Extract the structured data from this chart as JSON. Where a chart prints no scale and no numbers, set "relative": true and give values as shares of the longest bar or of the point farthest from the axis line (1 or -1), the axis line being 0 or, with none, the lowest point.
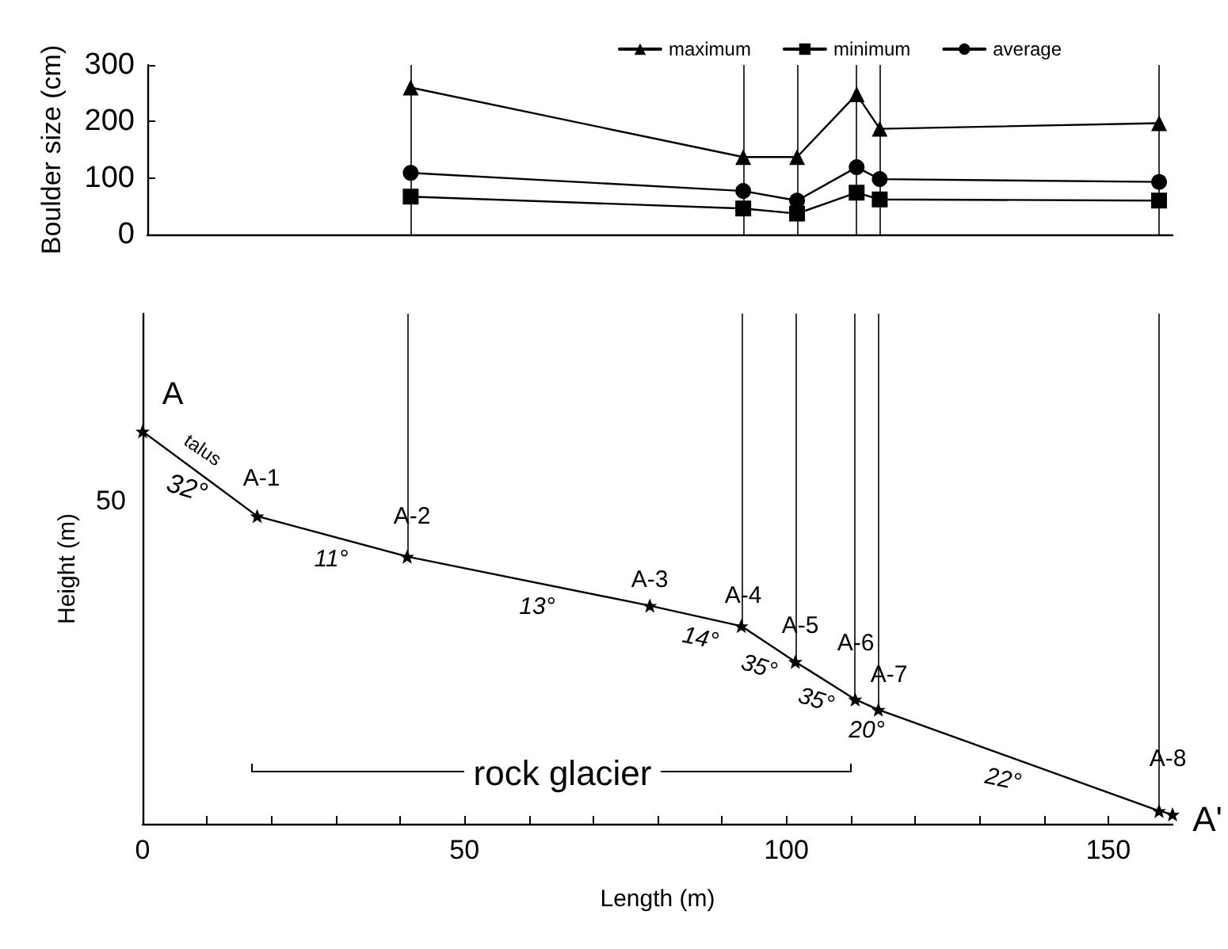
{
  "chart_data": [
    {
      "type": "line",
      "ylabel": "Boulder size (cm)",
      "x": [
        41.1,
        93,
        101.4,
        110.7,
        114.3,
        157.9
      ],
      "series": [
        {
          "name": "maximum",
          "color": "#000000",
          "marker": "triangle",
          "values": [
            260,
            137,
            137,
            248,
            187,
            197
          ]
        },
        {
          "name": "minimum",
          "color": "#000000",
          "marker": "square",
          "values": [
            67,
            46,
            37,
            74,
            62,
            60
          ]
        },
        {
          "name": "average",
          "color": "#000000",
          "marker": "circle",
          "values": [
            109,
            77,
            60,
            119,
            98,
            93
          ]
        }
      ],
      "xlim": [
        0,
        160
      ],
      "ylim": [
        0,
        300
      ],
      "yticks": [
        0,
        100,
        200,
        300
      ],
      "tick_labels": "y",
      "legend": "top right",
      "line_style": "solid",
      "ref_lines": [
        {
          "axis": "x",
          "value": 41.1,
          "color": "#000000"
        },
        {
          "axis": "x",
          "value": 93,
          "color": "#000000"
        },
        {
          "axis": "x",
          "value": 101.4,
          "color": "#000000"
        },
        {
          "axis": "x",
          "value": 110.7,
          "color": "#000000"
        },
        {
          "axis": "x",
          "value": 114.3,
          "color": "#000000"
        },
        {
          "axis": "x",
          "value": 157.9,
          "color": "#000000"
        }
      ]
    },
    {
      "type": "line",
      "xlabel": "Length (m)",
      "ylabel": "Height (m)",
      "relative": true,
      "x": [
        0,
        17.8,
        41.1,
        78.8,
        93,
        101.4,
        110.7,
        114.3,
        157.9,
        160
      ],
      "series": [
        {
          "color": "#000000",
          "values": [
            1,
            0.784,
            0.681,
            0.556,
            0.504,
            0.413,
            0.317,
            0.291,
            0.033,
            0.024
          ]
        }
      ],
      "marker": "star",
      "line_style": "solid",
      "xlim": [
        0,
        160
      ],
      "xticks": [
        0,
        {
          "value": 10,
          "label": null
        },
        {
          "value": 20,
          "label": null
        },
        {
          "value": 30,
          "label": null
        },
        {
          "value": 40,
          "label": null
        },
        50,
        {
          "value": 60,
          "label": null
        },
        {
          "value": 70,
          "label": null
        },
        {
          "value": 80,
          "label": null
        },
        {
          "value": 90,
          "label": null
        },
        100,
        {
          "value": 110,
          "label": null
        },
        {
          "value": 120,
          "label": null
        },
        {
          "value": 130,
          "label": null
        },
        {
          "value": 140,
          "label": null
        },
        150
      ],
      "ref_lines": [
        {
          "axis": "x",
          "value": 41.1,
          "color": "#000000"
        },
        {
          "axis": "x",
          "value": 93,
          "color": "#000000"
        },
        {
          "axis": "x",
          "value": 101.4,
          "color": "#000000"
        },
        {
          "axis": "x",
          "value": 110.7,
          "color": "#000000"
        },
        {
          "axis": "x",
          "value": 114.3,
          "color": "#000000"
        },
        {
          "axis": "x",
          "value": 157.9,
          "color": "#000000"
        }
      ],
      "annotations": [
        "A",
        "talus",
        "32°",
        "A-1",
        "A-2",
        "11°",
        "13°",
        "A-3",
        "A-4",
        "14°",
        "A-5",
        "35°",
        "A-6",
        "35°",
        "A-7",
        "20°",
        "22°",
        "A-8",
        "A'",
        "50",
        "rock glacier"
      ]
    }
  ]
}
